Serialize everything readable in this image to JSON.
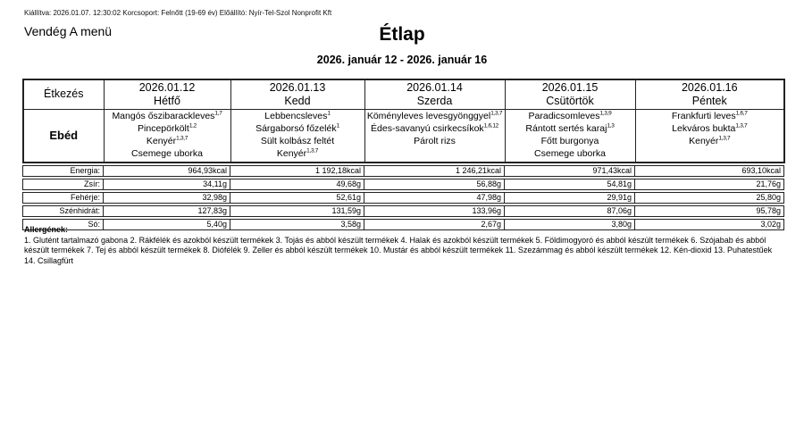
{
  "meta_line": "Kiállítva: 2026.01.07. 12:30:02 Korcsoport: Felnőtt (19-69 év) Előállító: Nyír-Tel-Szol Nonprofit Kft",
  "menu_name": "Vendég A menü",
  "title": "Étlap",
  "date_range": "2026. január 12 - 2026. január 16",
  "table": {
    "meal_header": "Étkezés",
    "meal_label": "Ebéd",
    "nutrient_labels": [
      "Energia:",
      "Zsír:",
      "Fehérje:",
      "Szénhidrát:",
      "Só:"
    ],
    "days": [
      {
        "date": "2026.01.12",
        "day": "Hétfő",
        "items": [
          {
            "text": "Mangós őszibarackleves",
            "sup": "1,7"
          },
          {
            "text": "Pincepörkölt",
            "sup": "1,2"
          },
          {
            "text": "Kenyér",
            "sup": "1,3,7"
          },
          {
            "text": "Csemege uborka",
            "sup": ""
          }
        ],
        "nutrients": [
          "964,93kcal",
          "34,11g",
          "32,98g",
          "127,83g",
          "5,40g"
        ]
      },
      {
        "date": "2026.01.13",
        "day": "Kedd",
        "items": [
          {
            "text": "Lebbencsleves",
            "sup": "1"
          },
          {
            "text": "Sárgaborsó főzelék",
            "sup": "1"
          },
          {
            "text": "Sült kolbász feltét",
            "sup": ""
          },
          {
            "text": "Kenyér",
            "sup": "1,3,7"
          }
        ],
        "nutrients": [
          "1 192,18kcal",
          "49,68g",
          "52,61g",
          "131,59g",
          "3,58g"
        ]
      },
      {
        "date": "2026.01.14",
        "day": "Szerda",
        "items": [
          {
            "text": "Köményleves levesgyönggyel",
            "sup": "1,3,7"
          },
          {
            "text": "Édes-savanyú csirkecsíkok",
            "sup": "1,6,12"
          },
          {
            "text": "Párolt rizs",
            "sup": ""
          }
        ],
        "nutrients": [
          "1 246,21kcal",
          "56,88g",
          "47,98g",
          "133,96g",
          "2,67g"
        ]
      },
      {
        "date": "2026.01.15",
        "day": "Csütörtök",
        "items": [
          {
            "text": "Paradicsomleves",
            "sup": "1,3,9"
          },
          {
            "text": "Rántott sertés karaj",
            "sup": "1,3"
          },
          {
            "text": "Főtt burgonya",
            "sup": ""
          },
          {
            "text": "Csemege uborka",
            "sup": ""
          }
        ],
        "nutrients": [
          "971,43kcal",
          "54,81g",
          "29,91g",
          "87,06g",
          "3,80g"
        ]
      },
      {
        "date": "2026.01.16",
        "day": "Péntek",
        "items": [
          {
            "text": "Frankfurti leves",
            "sup": "1,6,7"
          },
          {
            "text": "Lekváros bukta",
            "sup": "1,3,7"
          },
          {
            "text": "Kenyér",
            "sup": "1,3,7"
          }
        ],
        "nutrients": [
          "693,10kcal",
          "21,76g",
          "25,80g",
          "95,78g",
          "3,02g"
        ]
      }
    ]
  },
  "allergens": {
    "heading": "Allergének:",
    "text": "1. Glutént tartalmazó gabona 2. Rákfélék és azokból készült termékek 3. Tojás és abból készült termékek 4. Halak és azokból készült termékek 5. Földimogyoró és abból készült termékek 6. Szójabab és abból készült termékek 7. Tej és abból készült termékek 8. Diófélék 9. Zeller és abból készült termékek 10. Mustár és abból készült termékek 11. Szezámmag és abból készült termékek 12. Kén-dioxid 13. Puhatestűek 14. Csillagfürt"
  }
}
